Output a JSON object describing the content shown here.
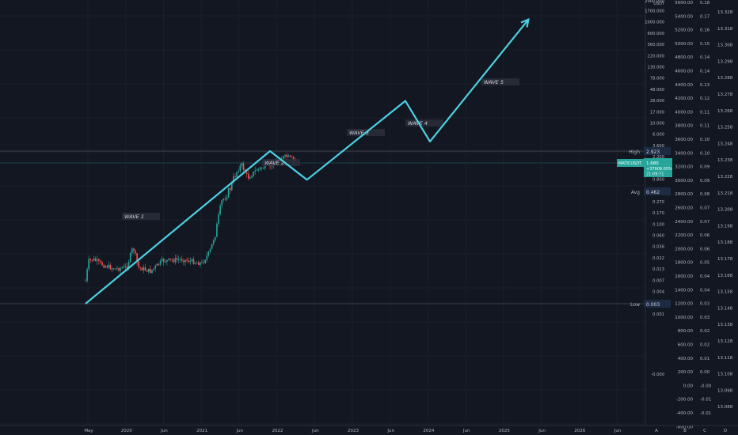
{
  "chart_data": {
    "type": "line",
    "symbol": "MATICUSDT",
    "axes": {
      "x_labels": [
        "May",
        "2020",
        "Jun",
        "2021",
        "Jun",
        "2022",
        "Jun",
        "2023",
        "Jun",
        "2024",
        "Jun",
        "2025",
        "Jun",
        "2026",
        "Jun"
      ],
      "scale_a": {
        "unit": "USDT",
        "labels": [
          "2900.000",
          "1700.000",
          "1000.000",
          "600.000",
          "360.000",
          "220.000",
          "130.000",
          "78.000",
          "48.000",
          "28.000",
          "17.000",
          "10.000",
          "6.000",
          "3.600",
          "2.200",
          "1.300",
          "0.800",
          "0.470",
          "0.270",
          "0.170",
          "0.100",
          "0.060",
          "0.036",
          "0.022",
          "0.013",
          "0.007",
          "0.004",
          "0.002",
          "0.001",
          "-0.000"
        ]
      },
      "scale_b": {
        "labels": [
          "5600.00",
          "5400.00",
          "5200.00",
          "5000.00",
          "4800.00",
          "4600.00",
          "4400.00",
          "4200.00",
          "4000.00",
          "3800.00",
          "3600.00",
          "3400.00",
          "3200.00",
          "3000.00",
          "2800.00",
          "2600.00",
          "2400.00",
          "2200.00",
          "2000.00",
          "1800.00",
          "1600.00",
          "1400.00",
          "1200.00",
          "1000.00",
          "800.00",
          "600.00",
          "400.00",
          "200.00",
          "0.00",
          "-200.00",
          "-400.00",
          "-600.00"
        ]
      },
      "scale_c": {
        "labels": [
          "0.18",
          "0.17",
          "0.16",
          "0.15",
          "0.14",
          "0.14",
          "0.13",
          "0.12",
          "0.11",
          "0.11",
          "0.10",
          "0.10",
          "0.09",
          "0.09",
          "0.08",
          "0.07",
          "0.07",
          "0.06",
          "0.06",
          "0.05",
          "0.04",
          "0.04",
          "0.03",
          "0.03",
          "0.02",
          "0.02",
          "0.01",
          "0.00",
          "-0.00",
          "-0.01",
          "-0.01"
        ]
      },
      "scale_d": {
        "labels": [
          "13.328",
          "13.318",
          "13.308",
          "13.298",
          "13.288",
          "13.278",
          "13.268",
          "13.258",
          "13.248",
          "13.238",
          "13.228",
          "13.218",
          "13.208",
          "13.198",
          "13.188",
          "13.178",
          "13.168",
          "13.158",
          "13.148",
          "13.138",
          "13.128",
          "13.118",
          "13.108",
          "13.098",
          "13.088"
        ]
      },
      "scale_letters": [
        "A",
        "B",
        "C",
        "D"
      ]
    },
    "markers": {
      "high": {
        "label": "High",
        "value": "2.923"
      },
      "current": {
        "symbol": "MATICUSDT",
        "price": "1.680",
        "change": "+37909.05%",
        "countdown": "21:09:71"
      },
      "avg": {
        "label": "Avg",
        "value": "0.462"
      },
      "low": {
        "label": "Low",
        "value": "0.003"
      }
    },
    "waves": [
      {
        "label": "WAVE 1"
      },
      {
        "label": "WAVE 2"
      },
      {
        "label": "WAVE 3"
      },
      {
        "label": "WAVE 4"
      },
      {
        "label": "WAVE 5"
      }
    ],
    "wave_path": [
      {
        "t": "2019-05",
        "price": 0.003
      },
      {
        "t": "2021-11",
        "price": 2.923
      },
      {
        "t": "2022-05",
        "price": 0.8
      },
      {
        "t": "2023-09",
        "price": 28
      },
      {
        "t": "2024-01",
        "price": 4.5
      },
      {
        "t": "2025-05",
        "price": 1100
      }
    ],
    "colors": {
      "background": "#131722",
      "wave_line": "#4dd0e1",
      "up_candle": "#26a69a",
      "down_candle": "#ef5350",
      "text": "#b2b5be",
      "current_badge": "#26a69a",
      "hl_badge": "#1e3a5f"
    }
  }
}
